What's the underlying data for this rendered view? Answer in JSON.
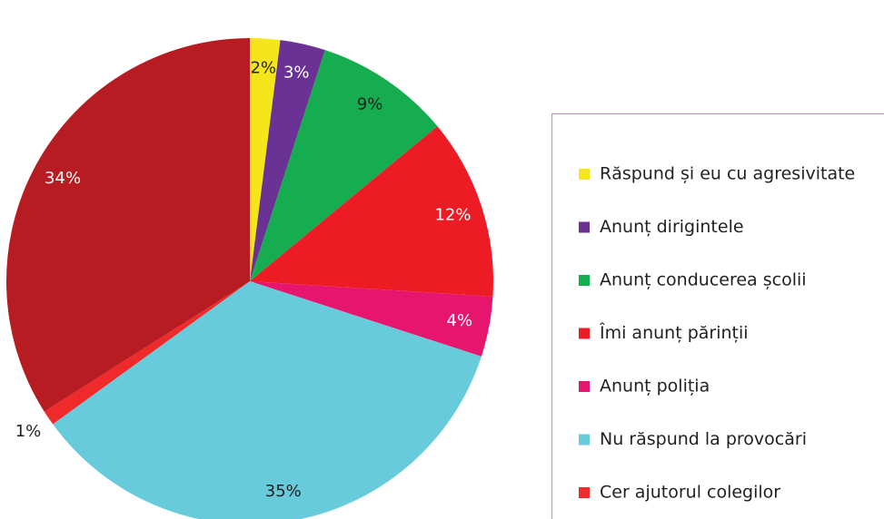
{
  "chart_data": {
    "type": "pie",
    "categories": [
      "Răspund și eu cu agresivitate",
      "Anunț dirigintele",
      "Anunț conducerea școlii",
      "Îmi anunț părinții",
      "Anunț poliția",
      "Nu răspund la provocări",
      "Cer ajutorul colegilor",
      null
    ],
    "values": [
      2,
      3,
      9,
      12,
      4,
      35,
      1,
      34
    ],
    "value_labels": [
      "2%",
      "3%",
      "9%",
      "12%",
      "4%",
      "35%",
      "1%",
      "34%"
    ],
    "colors": [
      "#f4e61a",
      "#6a3294",
      "#15ad4f",
      "#ed1c24",
      "#e6166e",
      "#67cbdb",
      "#ee2a2a",
      "#b71c22"
    ],
    "legend": "right"
  }
}
